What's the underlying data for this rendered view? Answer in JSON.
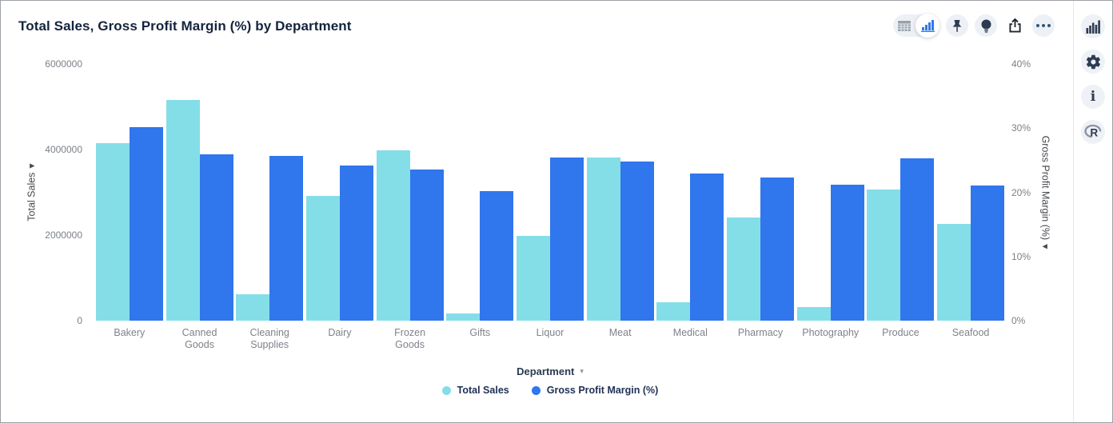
{
  "page": {
    "title": "Total Sales, Gross Profit Margin (%) by Department"
  },
  "toolbar": {
    "view_toggle": {
      "options": [
        "table-view",
        "chart-view"
      ],
      "selected": "chart-view"
    },
    "buttons": [
      "pin",
      "insights-bulb",
      "export",
      "more-options"
    ]
  },
  "side_rail": {
    "buttons": [
      "chart-type",
      "settings-gear",
      "info",
      "r-logo"
    ]
  },
  "icons": {
    "info_glyph": "i",
    "dropdown_arrow": "▾",
    "left_axis_arrow": "▾",
    "right_axis_arrow": "▾"
  },
  "chart_data": {
    "type": "bar",
    "title": "Total Sales, Gross Profit Margin (%) by Department",
    "categories": [
      "Bakery",
      "Canned Goods",
      "Cleaning Supplies",
      "Dairy",
      "Frozen Goods",
      "Gifts",
      "Liquor",
      "Meat",
      "Medical",
      "Pharmacy",
      "Photography",
      "Produce",
      "Seafood"
    ],
    "series": [
      {
        "name": "Total Sales",
        "axis": "left",
        "color": "#84DEE8",
        "values": [
          4150000,
          5160000,
          620000,
          2920000,
          3980000,
          170000,
          1980000,
          3810000,
          430000,
          2410000,
          320000,
          3070000,
          2260000
        ]
      },
      {
        "name": "Gross Profit Margin (%)",
        "axis": "right",
        "color": "#3076ED",
        "values": [
          30.2,
          25.9,
          25.7,
          24.2,
          23.6,
          20.2,
          25.4,
          24.8,
          22.9,
          22.3,
          21.2,
          25.3,
          21.0
        ]
      }
    ],
    "left_axis": {
      "label": "Total Sales",
      "max": 6000000,
      "ticks": [
        "0",
        "2000000",
        "4000000",
        "6000000"
      ]
    },
    "right_axis": {
      "label": "Gross Profit Margin (%)",
      "max": 40,
      "ticks": [
        "0%",
        "10%",
        "20%",
        "30%",
        "40%"
      ]
    },
    "xlabel": "Department",
    "legend_position": "bottom",
    "grid": false
  }
}
